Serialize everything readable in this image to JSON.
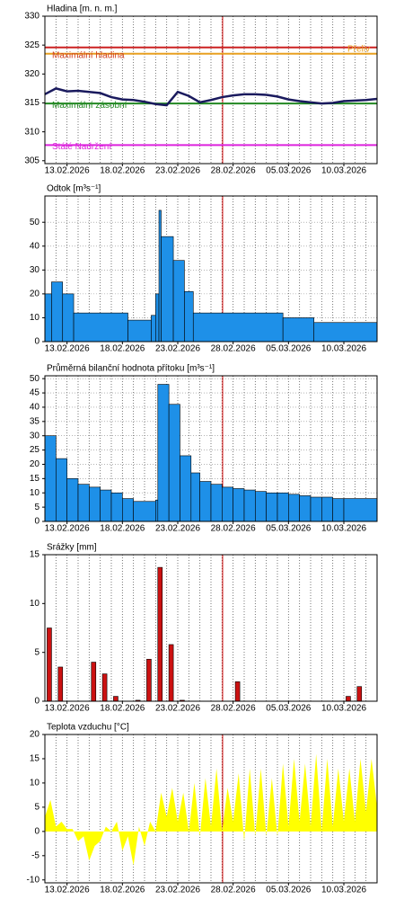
{
  "chart_data": [
    {
      "type": "line",
      "title": "Hladina [m. n. m.]",
      "xlim": [
        0,
        30
      ],
      "ylim": [
        304.5,
        330
      ],
      "yticks": [
        305,
        310,
        315,
        320,
        325,
        330
      ],
      "grid": false,
      "xticks": [
        {
          "value": 2,
          "label": "13.02.2026"
        },
        {
          "value": 7,
          "label": "18.02.2026"
        },
        {
          "value": 12,
          "label": "23.02.2026"
        },
        {
          "value": 17,
          "label": "28.02.2026"
        },
        {
          "value": 22,
          "label": "05.03.2026"
        },
        {
          "value": 27,
          "label": "10.03.2026"
        }
      ],
      "xgrid": [
        1,
        2,
        3,
        4,
        5,
        6,
        7,
        8,
        9,
        10,
        11,
        12,
        13,
        14,
        15,
        16,
        17,
        18,
        19,
        20,
        21,
        22,
        23,
        24,
        25,
        26,
        27,
        28,
        29
      ],
      "now_x": 16.05,
      "now_color": "#cc0000",
      "reference_lines": [
        {
          "name": "Přeliv",
          "value": 324.6,
          "color": "#cc2222",
          "side": "right",
          "text_color": "#e8a020"
        },
        {
          "name": "Maximální hladina",
          "value": 323.5,
          "color": "#e8a020",
          "side": "left",
          "text_color": "#d04020"
        },
        {
          "name": "Maximální zásobní",
          "value": 314.9,
          "color": "#228822",
          "side": "left",
          "text_color": "#228822"
        },
        {
          "name": "Stálé Nadržení",
          "value": 307.7,
          "color": "#dd22dd",
          "side": "left",
          "text_color": "#dd22dd"
        }
      ],
      "series": [
        {
          "color": "#1a1a5e",
          "x": [
            0,
            1,
            2,
            3,
            4,
            5,
            6,
            7,
            8,
            9,
            10,
            11,
            12,
            13,
            14,
            15,
            16,
            17,
            18,
            19,
            20,
            21,
            22,
            23,
            24,
            25,
            26,
            27,
            28,
            29,
            30
          ],
          "values": [
            316.5,
            317.5,
            317.0,
            317.1,
            316.9,
            316.7,
            316.0,
            315.6,
            315.5,
            315.2,
            314.8,
            314.6,
            316.9,
            316.2,
            315.1,
            315.5,
            316.0,
            316.3,
            316.5,
            316.5,
            316.4,
            316.1,
            315.6,
            315.3,
            315.1,
            314.9,
            315.0,
            315.3,
            315.4,
            315.5,
            315.7
          ]
        }
      ]
    },
    {
      "type": "area",
      "step": true,
      "title": "Odtok [m³s⁻¹]",
      "xlim": [
        0,
        30
      ],
      "ylim": [
        0,
        61
      ],
      "yticks": [
        0,
        10,
        20,
        30,
        40,
        50
      ],
      "grid": true,
      "xticks": [
        {
          "value": 2,
          "label": "13.02.2026"
        },
        {
          "value": 7,
          "label": "18.02.2026"
        },
        {
          "value": 12,
          "label": "23.02.2026"
        },
        {
          "value": 17,
          "label": "28.02.2026"
        },
        {
          "value": 22,
          "label": "05.03.2026"
        },
        {
          "value": 27,
          "label": "10.03.2026"
        }
      ],
      "xgrid": [
        1,
        2,
        3,
        4,
        5,
        6,
        7,
        8,
        9,
        10,
        11,
        12,
        13,
        14,
        15,
        16,
        17,
        18,
        19,
        20,
        21,
        22,
        23,
        24,
        25,
        26,
        27,
        28,
        29
      ],
      "now_x": 16.05,
      "now_color": "#cc0000",
      "series": [
        {
          "color": "#1e90e8",
          "x": [
            0,
            0.6,
            1.6,
            2.6,
            7.5,
            9.6,
            10.0,
            10.3,
            10.5,
            11.6,
            12.6,
            13.4,
            21.5,
            24.3
          ],
          "values": [
            20,
            25,
            20,
            12,
            9,
            11,
            20,
            55,
            44,
            34,
            21,
            12,
            10,
            8
          ]
        }
      ]
    },
    {
      "type": "area",
      "step": true,
      "title": "Průměrná bilanční hodnota přítoku [m³s⁻¹]",
      "xlim": [
        0,
        30
      ],
      "ylim": [
        0,
        51
      ],
      "yticks": [
        0,
        5,
        10,
        15,
        20,
        25,
        30,
        35,
        40,
        45,
        50
      ],
      "grid": true,
      "xticks": [
        {
          "value": 2,
          "label": "13.02.2026"
        },
        {
          "value": 7,
          "label": "18.02.2026"
        },
        {
          "value": 12,
          "label": "23.02.2026"
        },
        {
          "value": 17,
          "label": "28.02.2026"
        },
        {
          "value": 22,
          "label": "05.03.2026"
        },
        {
          "value": 27,
          "label": "10.03.2026"
        }
      ],
      "xgrid": [
        1,
        2,
        3,
        4,
        5,
        6,
        7,
        8,
        9,
        10,
        11,
        12,
        13,
        14,
        15,
        16,
        17,
        18,
        19,
        20,
        21,
        22,
        23,
        24,
        25,
        26,
        27,
        28,
        29
      ],
      "now_x": 16.05,
      "now_color": "#cc0000",
      "series": [
        {
          "color": "#1e90e8",
          "x": [
            0,
            1,
            2,
            3,
            4,
            5,
            6,
            7,
            8,
            10,
            10.2,
            11.2,
            12.2,
            13.2,
            14,
            15,
            16,
            17,
            18,
            19,
            20,
            21,
            22,
            23,
            24,
            25,
            26,
            27
          ],
          "values": [
            30,
            22,
            15,
            13,
            12,
            11,
            10,
            8,
            7,
            7.5,
            48,
            41,
            23,
            17,
            14,
            13,
            12,
            11.5,
            11,
            10.5,
            10,
            10,
            9.5,
            9,
            8.5,
            8.5,
            8,
            8
          ]
        }
      ]
    },
    {
      "type": "bar",
      "title": "Srážky [mm]",
      "xlim": [
        0,
        30
      ],
      "ylim": [
        0,
        15
      ],
      "yticks": [
        0,
        5,
        10,
        15
      ],
      "grid": false,
      "xticks": [
        {
          "value": 2,
          "label": "13.02.2026"
        },
        {
          "value": 7,
          "label": "18.02.2026"
        },
        {
          "value": 12,
          "label": "23.02.2026"
        },
        {
          "value": 17,
          "label": "28.02.2026"
        },
        {
          "value": 22,
          "label": "05.03.2026"
        },
        {
          "value": 27,
          "label": "10.03.2026"
        }
      ],
      "xgrid": [
        1,
        2,
        3,
        4,
        5,
        6,
        7,
        8,
        9,
        10,
        11,
        12,
        13,
        14,
        15,
        16,
        17,
        18,
        19,
        20,
        21,
        22,
        23,
        24,
        25,
        26,
        27,
        28,
        29
      ],
      "now_x": 16.05,
      "now_color": "#cc0000",
      "series": [
        {
          "color": "#cc1111",
          "x": [
            0.4,
            1.4,
            4.4,
            5.4,
            6.4,
            8.4,
            9.4,
            10.4,
            11.4,
            12.4,
            17.4,
            27.4,
            28.4
          ],
          "values": [
            7.5,
            3.5,
            4.0,
            2.8,
            0.5,
            0.1,
            4.3,
            13.7,
            5.8,
            0.1,
            2.0,
            0.5,
            1.5
          ]
        }
      ]
    },
    {
      "type": "area",
      "step": false,
      "title": "Teplota vzduchu [°C]",
      "xlim": [
        0,
        30
      ],
      "ylim": [
        -10.6,
        20
      ],
      "yticks": [
        -10,
        -5,
        0,
        5,
        10,
        15,
        20
      ],
      "grid": false,
      "xticks": [
        {
          "value": 2,
          "label": "13.02.2026"
        },
        {
          "value": 7,
          "label": "18.02.2026"
        },
        {
          "value": 12,
          "label": "23.02.2026"
        },
        {
          "value": 17,
          "label": "28.02.2026"
        },
        {
          "value": 22,
          "label": "05.03.2026"
        },
        {
          "value": 27,
          "label": "10.03.2026"
        }
      ],
      "xgrid": [
        1,
        2,
        3,
        4,
        5,
        6,
        7,
        8,
        9,
        10,
        11,
        12,
        13,
        14,
        15,
        16,
        17,
        18,
        19,
        20,
        21,
        22,
        23,
        24,
        25,
        26,
        27,
        28,
        29
      ],
      "now_x": 16.05,
      "now_color": "#cc0000",
      "series": [
        {
          "color": "#ffff00",
          "x": [
            0,
            0.5,
            1,
            1.5,
            2,
            2.5,
            3,
            3.5,
            4,
            4.5,
            5,
            5.5,
            6,
            6.5,
            7,
            7.5,
            8,
            8.5,
            9,
            9.5,
            10,
            10.5,
            11,
            11.5,
            12,
            12.5,
            13,
            13.5,
            14,
            14.5,
            15,
            15.5,
            16,
            16.5,
            17,
            17.5,
            18,
            18.5,
            19,
            19.5,
            20,
            20.5,
            21,
            21.5,
            22,
            22.5,
            23,
            23.5,
            24,
            24.5,
            25,
            25.5,
            26,
            26.5,
            27,
            27.5,
            28,
            28.5,
            29,
            29.5,
            30
          ],
          "values": [
            3,
            6.5,
            1,
            2,
            0.5,
            0.5,
            -2,
            -1,
            -6,
            -3,
            -2,
            1,
            0,
            2,
            -4,
            -1,
            -7,
            1,
            -3,
            2,
            0,
            8,
            3,
            9,
            2,
            8,
            0,
            10,
            -1,
            11,
            1,
            13,
            0,
            9,
            2,
            12,
            -2,
            13,
            -1,
            13,
            -1,
            11,
            -1,
            14,
            1,
            15,
            2,
            14,
            1,
            16,
            0,
            15,
            1,
            13,
            2,
            13,
            2,
            15,
            4,
            15,
            5
          ]
        }
      ]
    }
  ]
}
